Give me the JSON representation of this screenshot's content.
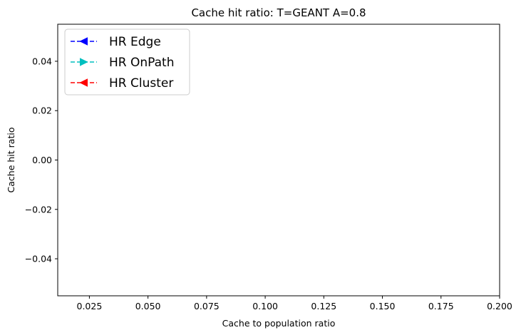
{
  "chart_data": {
    "type": "line",
    "title": "Cache hit ratio: T=GEANT A=0.8",
    "xlabel": "Cache to population ratio",
    "ylabel": "Cache hit ratio",
    "xlim": [
      0.0115,
      0.2
    ],
    "ylim": [
      -0.055,
      0.055
    ],
    "x_ticks": [
      0.025,
      0.05,
      0.075,
      0.1,
      0.125,
      0.15,
      0.175,
      0.2
    ],
    "x_tick_labels": [
      "0.025",
      "0.050",
      "0.075",
      "0.100",
      "0.125",
      "0.150",
      "0.175",
      "0.200"
    ],
    "y_ticks": [
      0.04,
      0.02,
      0.0,
      -0.02,
      -0.04
    ],
    "y_tick_labels": [
      "0.04",
      "0.02",
      "0.00",
      "−0.02",
      "−0.04"
    ],
    "grid": false,
    "legend_position": "top-left",
    "series": [
      {
        "name": "HR Edge",
        "color": "#0000ff",
        "linestyle": "dashed",
        "marker": "triangle-left",
        "x": [],
        "y": []
      },
      {
        "name": "HR OnPath",
        "color": "#00bfbf",
        "linestyle": "dashed",
        "marker": "triangle-right",
        "x": [],
        "y": []
      },
      {
        "name": "HR Cluster",
        "color": "#ff0000",
        "linestyle": "dashed",
        "marker": "triangle-left",
        "x": [],
        "y": []
      }
    ]
  }
}
